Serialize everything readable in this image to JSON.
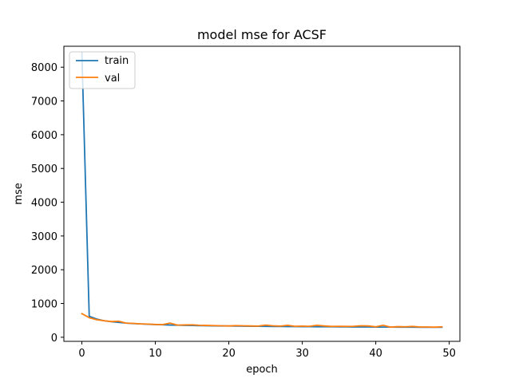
{
  "chart_data": {
    "type": "line",
    "title": "model mse for ACSF",
    "xlabel": "epoch",
    "ylabel": "mse",
    "xlim": [
      -2.45,
      51.45
    ],
    "ylim": [
      -121,
      8620
    ],
    "x_ticks": [
      0,
      10,
      20,
      30,
      40,
      50
    ],
    "y_ticks": [
      0,
      1000,
      2000,
      3000,
      4000,
      5000,
      6000,
      7000,
      8000
    ],
    "grid": false,
    "legend": {
      "position": "top-left"
    },
    "x": [
      0,
      1,
      2,
      3,
      4,
      5,
      6,
      7,
      8,
      9,
      10,
      11,
      12,
      13,
      14,
      15,
      16,
      17,
      18,
      19,
      20,
      21,
      22,
      23,
      24,
      25,
      26,
      27,
      28,
      29,
      30,
      31,
      32,
      33,
      34,
      35,
      36,
      37,
      38,
      39,
      40,
      41,
      42,
      43,
      44,
      45,
      46,
      47,
      48,
      49
    ],
    "series": [
      {
        "name": "train",
        "color": "#1f77b4",
        "values": [
          8420,
          620,
          540,
          490,
          460,
          440,
          420,
          405,
          395,
          385,
          375,
          370,
          362,
          357,
          352,
          348,
          344,
          341,
          338,
          335,
          333,
          331,
          329,
          327,
          325,
          323,
          321,
          319,
          318,
          316,
          315,
          313,
          312,
          311,
          310,
          309,
          307,
          306,
          305,
          304,
          303,
          302,
          301,
          300,
          299,
          298,
          297,
          297,
          296,
          295
        ]
      },
      {
        "name": "val",
        "color": "#ff7f0e",
        "values": [
          700,
          580,
          520,
          490,
          465,
          475,
          420,
          410,
          395,
          390,
          380,
          375,
          420,
          360,
          365,
          370,
          355,
          350,
          345,
          340,
          335,
          345,
          340,
          335,
          330,
          360,
          340,
          330,
          355,
          325,
          330,
          325,
          355,
          335,
          320,
          325,
          320,
          325,
          340,
          335,
          310,
          355,
          300,
          315,
          310,
          320,
          305,
          305,
          300,
          310
        ]
      }
    ]
  }
}
